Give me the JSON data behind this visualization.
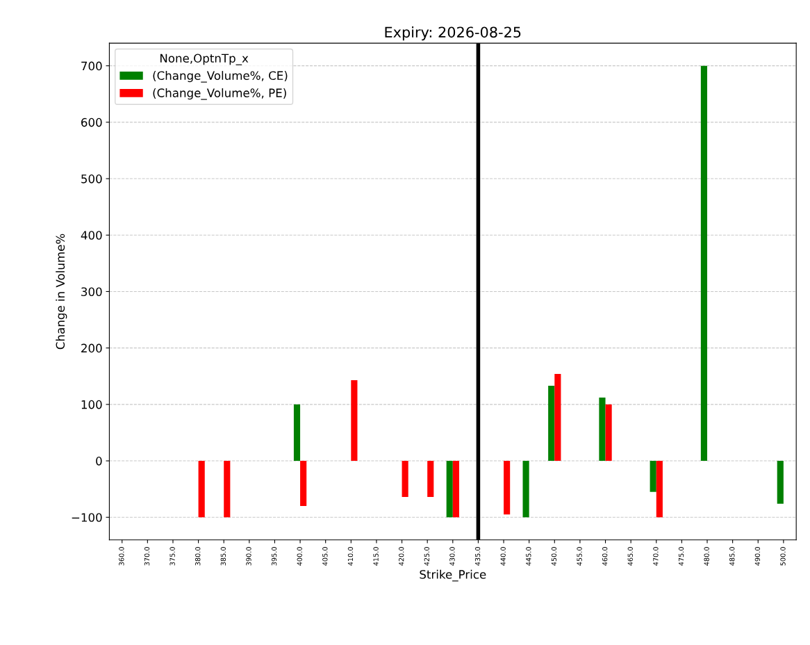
{
  "chart_data": {
    "type": "bar",
    "title": "Expiry: 2026-08-25",
    "xlabel": "Strike_Price",
    "ylabel": "Change in Volume%",
    "legend_title": "None,OptnTp_x",
    "categories": [
      "360.0",
      "370.0",
      "375.0",
      "380.0",
      "385.0",
      "390.0",
      "395.0",
      "400.0",
      "405.0",
      "410.0",
      "415.0",
      "420.0",
      "425.0",
      "430.0",
      "435.0",
      "440.0",
      "445.0",
      "450.0",
      "455.0",
      "460.0",
      "465.0",
      "470.0",
      "475.0",
      "480.0",
      "485.0",
      "490.0",
      "500.0"
    ],
    "series": [
      {
        "name": "(Change_Volume%, CE)",
        "color": "#008000",
        "values": [
          null,
          null,
          null,
          null,
          null,
          null,
          null,
          100,
          null,
          null,
          null,
          null,
          null,
          -100,
          null,
          null,
          -100,
          133,
          null,
          112,
          null,
          -55,
          null,
          700,
          null,
          null,
          -76
        ]
      },
      {
        "name": "(Change_Volume%, PE)",
        "color": "#ff0000",
        "values": [
          null,
          null,
          null,
          -100,
          -100,
          null,
          null,
          -80,
          null,
          143,
          null,
          -64,
          -64,
          -100,
          null,
          -95,
          null,
          154,
          null,
          100,
          null,
          -100,
          null,
          null,
          null,
          null,
          null
        ]
      }
    ],
    "ylim": [
      -140,
      740
    ],
    "yticks": [
      {
        "value": -100,
        "label": "−100"
      },
      0,
      100,
      200,
      300,
      400,
      500,
      600,
      700
    ],
    "ref_lines": [
      {
        "axis": "x",
        "value": "435.0",
        "color": "#000000",
        "line_style": "solid"
      }
    ],
    "grid": "y",
    "legend": "top left"
  }
}
